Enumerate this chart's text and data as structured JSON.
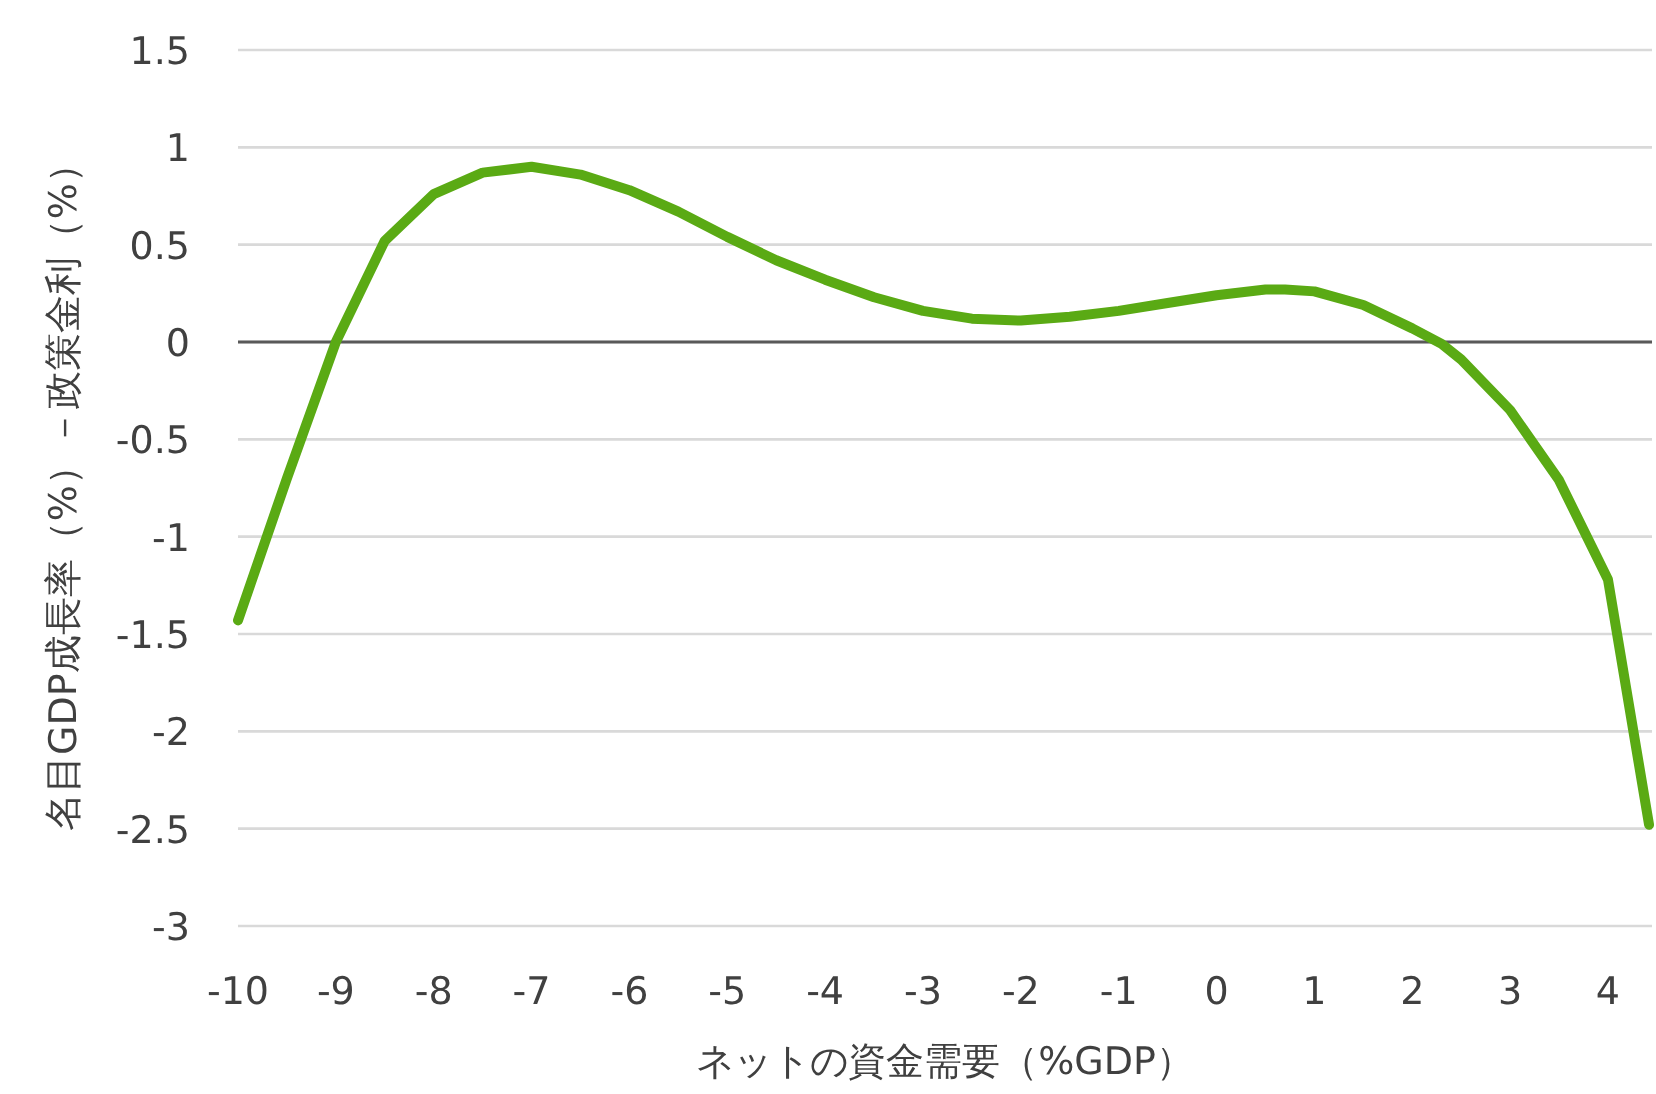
{
  "chart_data": {
    "type": "line",
    "xlabel": "ネットの資金需要（%GDP）",
    "ylabel": "名目GDP成長率（%）－政策金利（%）",
    "xlim": [
      -10,
      4.45
    ],
    "ylim": [
      -3,
      1.5
    ],
    "xticks": [
      -10,
      -9,
      -8,
      -7,
      -6,
      -5,
      -4,
      -3,
      -2,
      -1,
      0,
      1,
      2,
      3,
      4
    ],
    "yticks": [
      -3,
      -2.5,
      -2,
      -1.5,
      -1,
      -0.5,
      0,
      0.5,
      1,
      1.5
    ],
    "grid": "y",
    "marker": "none",
    "line_style": "solid",
    "series": [
      {
        "color": "#5aaa14",
        "x": [
          -10,
          -9.5,
          -9,
          -8.5,
          -8,
          -7.5,
          -7,
          -6.5,
          -6,
          -5.5,
          -5,
          -4.5,
          -4,
          -3.5,
          -3,
          -2.5,
          -2,
          -1.5,
          -1,
          -0.5,
          0,
          0.5,
          0.7,
          1,
          1.5,
          2,
          2.3,
          2.5,
          3,
          3.5,
          4,
          4.42
        ],
        "values": [
          -1.43,
          -0.7,
          0,
          0.52,
          0.76,
          0.87,
          0.9,
          0.86,
          0.78,
          0.67,
          0.54,
          0.42,
          0.32,
          0.23,
          0.16,
          0.12,
          0.11,
          0.13,
          0.16,
          0.2,
          0.24,
          0.27,
          0.27,
          0.26,
          0.19,
          0.07,
          -0.01,
          -0.09,
          -0.35,
          -0.71,
          -1.22,
          -2.48
        ]
      }
    ]
  }
}
